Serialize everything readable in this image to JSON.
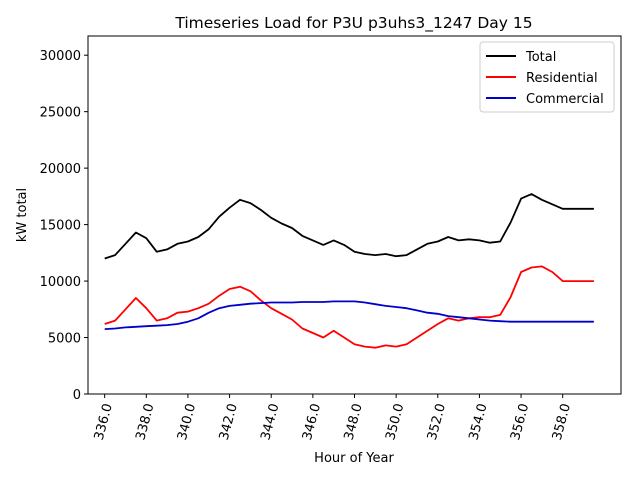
{
  "chart_data": {
    "type": "line",
    "title": "Timeseries Load for P3U p3uhs3_1247  Day 15",
    "xlabel": "Hour of Year",
    "ylabel": "kW total",
    "xlim": [
      335.2,
      360.8
    ],
    "ylim": [
      0,
      31700
    ],
    "x_ticks": [
      336,
      338,
      340,
      342,
      344,
      346,
      348,
      350,
      352,
      354,
      356,
      358
    ],
    "x_tick_labels": [
      "336.0",
      "338.0",
      "340.0",
      "342.0",
      "344.0",
      "346.0",
      "348.0",
      "350.0",
      "352.0",
      "354.0",
      "356.0",
      "358.0"
    ],
    "y_ticks": [
      0,
      5000,
      10000,
      15000,
      20000,
      25000,
      30000
    ],
    "y_tick_labels": [
      "0",
      "5000",
      "10000",
      "15000",
      "20000",
      "25000",
      "30000"
    ],
    "legend_position": "upper-right",
    "grid": false,
    "x": [
      336.0,
      336.5,
      337.0,
      337.5,
      338.0,
      338.5,
      339.0,
      339.5,
      340.0,
      340.5,
      341.0,
      341.5,
      342.0,
      342.5,
      343.0,
      343.5,
      344.0,
      344.5,
      345.0,
      345.5,
      346.0,
      346.5,
      347.0,
      347.5,
      348.0,
      348.5,
      349.0,
      349.5,
      350.0,
      350.5,
      351.0,
      351.5,
      352.0,
      352.5,
      353.0,
      353.5,
      354.0,
      354.5,
      355.0,
      355.5,
      356.0,
      356.5,
      357.0,
      357.5,
      358.0,
      358.5,
      359.0,
      359.5,
      359.75
    ],
    "series": [
      {
        "name": "Total",
        "color": "#000000",
        "values": [
          12000,
          12300,
          13300,
          14300,
          13800,
          12600,
          12800,
          13300,
          13500,
          13900,
          14600,
          15700,
          16500,
          17200,
          16900,
          16300,
          15600,
          15100,
          14700,
          14000,
          13600,
          13200,
          13600,
          13200,
          12600,
          12400,
          12300,
          12400,
          12200,
          12300,
          12800,
          13300,
          13500,
          13900,
          13600,
          13700,
          13600,
          13400,
          13500,
          15200,
          17300,
          17700,
          17200,
          16800,
          16400,
          16400,
          16400,
          16400,
          16400
        ]
      },
      {
        "name": "Residential",
        "color": "#ff0000",
        "values": [
          6200,
          6500,
          7500,
          8500,
          7600,
          6500,
          6700,
          7200,
          7300,
          7600,
          8000,
          8700,
          9300,
          9500,
          9100,
          8300,
          7600,
          7100,
          6600,
          5800,
          5400,
          5000,
          5600,
          5000,
          4400,
          4200,
          4100,
          4300,
          4200,
          4400,
          5000,
          5600,
          6200,
          6700,
          6500,
          6700,
          6800,
          6800,
          7000,
          8600,
          10800,
          11200,
          11300,
          10800,
          10000,
          10000,
          10000,
          10000,
          10000
        ]
      },
      {
        "name": "Commercial",
        "color": "#0000cc",
        "values": [
          5750,
          5800,
          5900,
          5950,
          6000,
          6050,
          6100,
          6200,
          6400,
          6700,
          7200,
          7600,
          7800,
          7900,
          8000,
          8050,
          8100,
          8100,
          8100,
          8150,
          8150,
          8150,
          8200,
          8200,
          8200,
          8100,
          7950,
          7800,
          7700,
          7600,
          7400,
          7200,
          7100,
          6900,
          6800,
          6700,
          6600,
          6500,
          6450,
          6400,
          6400,
          6400,
          6400,
          6400,
          6400,
          6400,
          6400,
          6400,
          6400
        ]
      }
    ]
  }
}
